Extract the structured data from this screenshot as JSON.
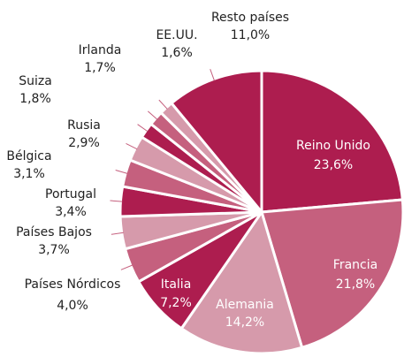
{
  "chart_data": {
    "type": "pie",
    "categories": [
      "Reino Unido",
      "Francia",
      "Alemania",
      "Italia",
      "Países Nórdicos",
      "Países Bajos",
      "Portugal",
      "Bélgica",
      "Rusia",
      "Suiza",
      "Irlanda",
      "EE.UU.",
      "Resto países"
    ],
    "values": [
      23.6,
      21.8,
      14.2,
      7.2,
      4.0,
      3.7,
      3.4,
      3.1,
      2.9,
      1.8,
      1.7,
      1.6,
      11.0
    ],
    "value_labels": [
      "23,6%",
      "21,8%",
      "14,2%",
      "7,2%",
      "4,0%",
      "3,7%",
      "3,4%",
      "3,1%",
      "2,9%",
      "1,8%",
      "1,7%",
      "1,6%",
      "11,0%"
    ],
    "colors": [
      "#ad1d4f",
      "#c5607e",
      "#d69aab",
      "#ad1d4f",
      "#c5607e",
      "#d69aab",
      "#ad1d4f",
      "#c5607e",
      "#d69aab",
      "#ad1d4f",
      "#c5607e",
      "#d69aab",
      "#ad1d4f"
    ]
  }
}
